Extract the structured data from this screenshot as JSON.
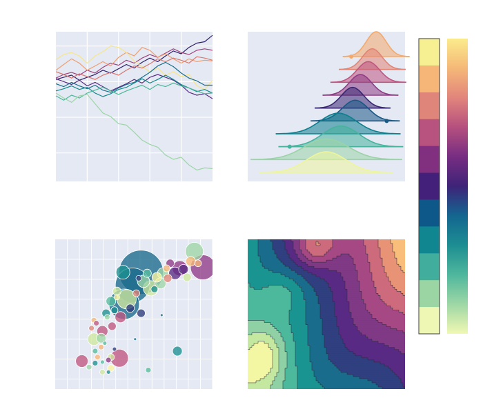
{
  "figure": {
    "background": "#ffffff"
  },
  "charts": {
    "walks": {
      "type": "line",
      "grid": true,
      "background": "#e4e9f3",
      "xlim": [
        0,
        100
      ],
      "ylim": [
        -14,
        7
      ],
      "series": [
        {
          "color": "#33206b",
          "x": [
            0,
            5,
            10,
            15,
            20,
            25,
            30,
            35,
            40,
            45,
            50,
            55,
            60,
            65,
            70,
            75,
            80,
            85,
            90,
            95,
            100
          ],
          "y": [
            0.3,
            0.6,
            0.9,
            0.2,
            0.6,
            1.0,
            1.6,
            1.2,
            1.8,
            2.4,
            1.9,
            2.7,
            3.3,
            2.8,
            3.6,
            4.3,
            3.9,
            4.8,
            5.4,
            5.6,
            6.5
          ]
        },
        {
          "color": "#a0437c",
          "x": [
            0,
            5,
            10,
            15,
            20,
            25,
            30,
            35,
            40,
            45,
            50,
            55,
            60,
            65,
            70,
            75,
            80,
            85,
            90,
            95,
            100
          ],
          "y": [
            0.5,
            1.0,
            1.3,
            0.9,
            1.6,
            1.2,
            2.0,
            2.6,
            2.3,
            3.0,
            2.6,
            3.3,
            3.8,
            3.4,
            4.0,
            4.6,
            4.1,
            3.8,
            4.4,
            4.6,
            4.4
          ]
        },
        {
          "color": "#ef9e70",
          "x": [
            0,
            5,
            10,
            15,
            20,
            25,
            30,
            35,
            40,
            45,
            50,
            55,
            60,
            65,
            70,
            75,
            80,
            85,
            90,
            95,
            100
          ],
          "y": [
            1.6,
            2.4,
            3.2,
            2.6,
            1.6,
            2.2,
            2.8,
            2.2,
            3.4,
            4.1,
            3.6,
            4.8,
            4.4,
            3.4,
            3.9,
            3.2,
            2.6,
            3.2,
            2.8,
            3.0,
            2.9
          ]
        },
        {
          "color": "#f7e689",
          "x": [
            0,
            5,
            10,
            15,
            20,
            25,
            30,
            35,
            40,
            45,
            50,
            55,
            60,
            65,
            70,
            75,
            80,
            85,
            90,
            95,
            100
          ],
          "y": [
            3.1,
            3.8,
            4.1,
            3.6,
            2.6,
            3.6,
            4.2,
            5.0,
            4.8,
            4.1,
            2.9,
            2.1,
            1.4,
            1.9,
            0.9,
            1.4,
            0.7,
            1.0,
            -0.6,
            -1.1,
            0.2
          ]
        },
        {
          "color": "#d9776f",
          "x": [
            0,
            5,
            10,
            15,
            20,
            25,
            30,
            35,
            40,
            45,
            50,
            55,
            60,
            65,
            70,
            75,
            80,
            85,
            90,
            95,
            100
          ],
          "y": [
            1.4,
            1.0,
            0.5,
            1.1,
            0.7,
            0.3,
            0.9,
            1.3,
            0.9,
            1.6,
            2.2,
            1.9,
            2.5,
            3.2,
            2.8,
            3.3,
            3.0,
            2.6,
            3.5,
            3.3,
            3.0
          ]
        },
        {
          "color": "#5a2d84",
          "x": [
            0,
            5,
            10,
            15,
            20,
            25,
            30,
            35,
            40,
            45,
            50,
            55,
            60,
            65,
            70,
            75,
            80,
            85,
            90,
            95,
            100
          ],
          "y": [
            0.4,
            0.0,
            -0.4,
            0.2,
            -0.6,
            -0.1,
            -0.7,
            -1.3,
            -0.8,
            -0.3,
            0.3,
            -0.2,
            0.6,
            1.0,
            0.6,
            0.2,
            -0.5,
            -1.5,
            -1.9,
            -1.7,
            -2.4
          ]
        },
        {
          "color": "#1b6e8c",
          "x": [
            0,
            5,
            10,
            15,
            20,
            25,
            30,
            35,
            40,
            45,
            50,
            55,
            60,
            65,
            70,
            75,
            80,
            85,
            90,
            95,
            100
          ],
          "y": [
            -0.3,
            -0.7,
            -0.1,
            -0.6,
            -1.0,
            -0.5,
            -1.2,
            -1.5,
            -0.9,
            -0.4,
            -0.1,
            0.6,
            1.3,
            2.2,
            2.7,
            2.1,
            1.2,
            0.5,
            0.1,
            -0.5,
            -0.5
          ]
        },
        {
          "color": "#128a8e",
          "x": [
            0,
            5,
            10,
            15,
            20,
            25,
            30,
            35,
            40,
            45,
            50,
            55,
            60,
            65,
            70,
            75,
            80,
            85,
            90,
            95,
            100
          ],
          "y": [
            -1.3,
            -1.0,
            -0.6,
            -1.1,
            -0.8,
            -1.6,
            -2.1,
            -1.7,
            -1.1,
            -0.8,
            -0.2,
            0.4,
            -0.2,
            0.3,
            0.9,
            0.3,
            -0.4,
            -0.9,
            -1.4,
            -1.1,
            -1.6
          ]
        },
        {
          "color": "#4cb89a",
          "x": [
            0,
            5,
            10,
            15,
            20,
            25,
            30,
            35,
            40,
            45,
            50,
            55,
            60,
            65,
            70,
            75,
            80,
            85,
            90,
            95,
            100
          ],
          "y": [
            -2.0,
            -2.6,
            -1.9,
            -2.3,
            -1.6,
            -1.2,
            -0.8,
            -1.3,
            -1.8,
            -1.3,
            -0.9,
            -0.5,
            -1.1,
            -0.4,
            -0.7,
            -0.2,
            -0.6,
            -0.9,
            -1.3,
            -1.7,
            -1.6
          ]
        },
        {
          "color": "#9cd6a6",
          "x": [
            0,
            5,
            10,
            15,
            20,
            25,
            30,
            35,
            40,
            45,
            50,
            55,
            60,
            65,
            70,
            75,
            80,
            85,
            90,
            95,
            100
          ],
          "y": [
            -1.6,
            -2.3,
            -2.9,
            -2.0,
            -1.8,
            -3.1,
            -4.4,
            -4.9,
            -5.9,
            -6.1,
            -7.1,
            -8.2,
            -8.8,
            -9.2,
            -10.3,
            -10.9,
            -10.6,
            -11.7,
            -12.4,
            -12.1,
            -12.2
          ]
        }
      ]
    },
    "ridges": {
      "type": "area",
      "grid": false,
      "background": "#e4e9f3",
      "xlim": [
        -6,
        6
      ],
      "rows": [
        {
          "color": "#f4a96c",
          "center": 3.8,
          "sd": 0.75,
          "amp": 1.2,
          "dot": 1.9
        },
        {
          "color": "#e28474",
          "center": 3.5,
          "sd": 0.75,
          "amp": 1.0
        },
        {
          "color": "#bf5580",
          "center": 3.2,
          "sd": 0.85,
          "amp": 1.0
        },
        {
          "color": "#8f3c84",
          "center": 2.6,
          "sd": 0.85,
          "amp": 1.0
        },
        {
          "color": "#3a2772",
          "center": 2.0,
          "sd": 0.85,
          "amp": 1.0
        },
        {
          "color": "#1a5885",
          "center": 2.2,
          "sd": 1.0,
          "amp": 1.0,
          "dot": 4.6
        },
        {
          "color": "#0f7e8e",
          "center": 0.9,
          "sd": 1.4,
          "amp": 1.0
        },
        {
          "color": "#46b39c",
          "center": 1.1,
          "sd": 1.4,
          "amp": 1.0,
          "dot": -2.8
        },
        {
          "color": "#9ad4a6",
          "center": 0.0,
          "sd": 1.7,
          "amp": 1.0
        },
        {
          "color": "#eef59a",
          "center": 0.0,
          "sd": 1.5,
          "amp": 1.0
        }
      ]
    },
    "bubbles": {
      "type": "scatter",
      "grid": true,
      "background": "#e4e9f3",
      "xlim": [
        -2,
        11
      ],
      "ylim": [
        -2,
        13
      ],
      "colors": [
        "#fbf6a0",
        "#cfe89d",
        "#9fd6a6",
        "#59bd9d",
        "#1c9190",
        "#196a8c",
        "#2d3a7a",
        "#5b2b83",
        "#913c86",
        "#c05780",
        "#e38678",
        "#f6b776"
      ],
      "points": [
        {
          "x": 5.1,
          "y": 9.7,
          "r": 32,
          "c": 5
        },
        {
          "x": 4.4,
          "y": 8.4,
          "r": 25,
          "c": 5
        },
        {
          "x": 3.7,
          "y": 6.5,
          "r": 22,
          "c": 5
        },
        {
          "x": 3.9,
          "y": 7.0,
          "r": 14,
          "c": 1
        },
        {
          "x": 9.5,
          "y": 11.8,
          "r": 13,
          "c": 2
        },
        {
          "x": 10.2,
          "y": 10.2,
          "r": 18,
          "c": 8
        },
        {
          "x": 8.3,
          "y": 10.1,
          "r": 11,
          "c": 8
        },
        {
          "x": 7.9,
          "y": 9.6,
          "r": 9,
          "c": 7
        },
        {
          "x": 9.2,
          "y": 10.8,
          "r": 7,
          "c": 11
        },
        {
          "x": 3.1,
          "y": 7.8,
          "r": 6,
          "c": 1
        },
        {
          "x": 2.6,
          "y": 6.8,
          "r": 7,
          "c": 3
        },
        {
          "x": 5.9,
          "y": 8.1,
          "r": 11,
          "c": 1
        },
        {
          "x": 6.4,
          "y": 9.2,
          "r": 7,
          "c": 0
        },
        {
          "x": 5.3,
          "y": 8.8,
          "r": 9,
          "c": 2
        },
        {
          "x": 3.6,
          "y": 9.7,
          "r": 10,
          "c": 4
        },
        {
          "x": 6.9,
          "y": 9.6,
          "r": 8,
          "c": 2
        },
        {
          "x": 7.5,
          "y": 10.6,
          "r": 6,
          "c": 8
        },
        {
          "x": 4.2,
          "y": 6.1,
          "r": 6,
          "c": 6
        },
        {
          "x": 3.4,
          "y": 5.2,
          "r": 8,
          "c": 9
        },
        {
          "x": 2.2,
          "y": 5.6,
          "r": 6,
          "c": 4
        },
        {
          "x": 5.1,
          "y": 5.6,
          "r": 6,
          "c": 6
        },
        {
          "x": 2.7,
          "y": 4.3,
          "r": 6,
          "c": 9
        },
        {
          "x": 1.9,
          "y": 3.8,
          "r": 8,
          "c": 9
        },
        {
          "x": 1.2,
          "y": 3.0,
          "r": 9,
          "c": 1
        },
        {
          "x": 1.8,
          "y": 3.1,
          "r": 7,
          "c": 2
        },
        {
          "x": 1.2,
          "y": 4.9,
          "r": 4,
          "c": 11
        },
        {
          "x": 1.4,
          "y": 4.6,
          "r": 4,
          "c": 9
        },
        {
          "x": 1.0,
          "y": 4.1,
          "r": 4,
          "c": 10
        },
        {
          "x": 1.5,
          "y": 1.2,
          "r": 4,
          "c": 11
        },
        {
          "x": 1.3,
          "y": 0.6,
          "r": 4,
          "c": 4
        },
        {
          "x": 1.9,
          "y": 0.7,
          "r": 3,
          "c": 3
        },
        {
          "x": 0.8,
          "y": 0.2,
          "r": 4,
          "c": 2
        },
        {
          "x": 2.4,
          "y": 0.9,
          "r": 4,
          "c": 8
        },
        {
          "x": 1.8,
          "y": 2.2,
          "r": 4,
          "c": 11
        },
        {
          "x": 2.1,
          "y": 2.6,
          "r": 3,
          "c": 3
        },
        {
          "x": 2.9,
          "y": 2.0,
          "r": 3,
          "c": 6
        },
        {
          "x": 2.6,
          "y": 0.1,
          "r": 5,
          "c": 0
        },
        {
          "x": 1.9,
          "y": -0.3,
          "r": 4,
          "c": 1
        },
        {
          "x": 2.4,
          "y": -0.3,
          "r": 3,
          "c": 4
        },
        {
          "x": 2.6,
          "y": 1.2,
          "r": 5,
          "c": 1
        },
        {
          "x": 3.3,
          "y": 1.1,
          "r": 13,
          "c": 9
        },
        {
          "x": 0.2,
          "y": 0.8,
          "r": 9,
          "c": 9
        },
        {
          "x": 1.3,
          "y": 1.8,
          "r": 4,
          "c": 3
        },
        {
          "x": 8.1,
          "y": 1.8,
          "r": 7,
          "c": 4
        },
        {
          "x": 5.7,
          "y": -0.1,
          "r": 4,
          "c": 3
        },
        {
          "x": 6.7,
          "y": 8.6,
          "r": 8,
          "c": 2
        },
        {
          "x": 6.2,
          "y": 8.0,
          "r": 5,
          "c": 4
        },
        {
          "x": 8.6,
          "y": 10.0,
          "r": 7,
          "c": 7
        },
        {
          "x": 7.3,
          "y": 9.1,
          "r": 6,
          "c": 10
        },
        {
          "x": 8.9,
          "y": 9.2,
          "r": 6,
          "c": 1
        },
        {
          "x": 4.9,
          "y": 9.1,
          "r": 4,
          "c": 6
        },
        {
          "x": 4.7,
          "y": 7.6,
          "r": 5,
          "c": 10
        },
        {
          "x": 2.9,
          "y": 5.9,
          "r": 5,
          "c": 4
        },
        {
          "x": 2.3,
          "y": 5.2,
          "r": 4,
          "c": 2
        },
        {
          "x": 3.1,
          "y": 7.2,
          "r": 4,
          "c": 0
        },
        {
          "x": 7.2,
          "y": 10.1,
          "r": 5,
          "c": 11
        },
        {
          "x": 9.8,
          "y": 10.6,
          "r": 5,
          "c": 11
        },
        {
          "x": 5.6,
          "y": 9.6,
          "r": 6,
          "c": 3
        },
        {
          "x": 4.6,
          "y": 3.0,
          "r": 2,
          "c": 5
        },
        {
          "x": 6.8,
          "y": 5.4,
          "r": 2,
          "c": 5
        }
      ]
    },
    "contour": {
      "type": "heatmap",
      "grid": false,
      "levels": [
        "#f3f7a3",
        "#c4e8a0",
        "#8fd1a5",
        "#4cb99d",
        "#1a9491",
        "#1a6c8c",
        "#2f3f7f",
        "#582a84",
        "#7f3985",
        "#a64884",
        "#cd6b7d",
        "#e89276",
        "#f9be79"
      ]
    },
    "colorbars": {
      "segmented": [
        "#f7f092",
        "#f5b677",
        "#df857a",
        "#b8527f",
        "#80307f",
        "#43217a",
        "#0e5889",
        "#0f8690",
        "#40ad9d",
        "#9bd5a4",
        "#eef7b4"
      ],
      "gradient": [
        "#fbeb8c",
        "#f5b878",
        "#e2857c",
        "#b5507f",
        "#772d82",
        "#3e2378",
        "#136690",
        "#1d8e92",
        "#4fb79d",
        "#9ed7a5",
        "#f1f8b3"
      ]
    }
  }
}
